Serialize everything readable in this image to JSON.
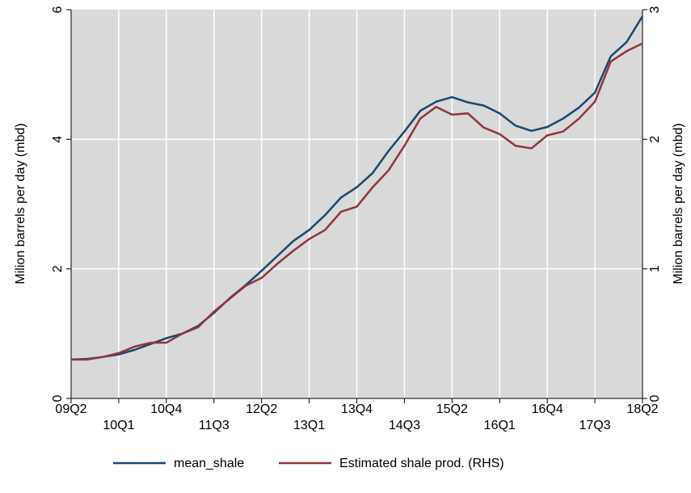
{
  "chart_data": {
    "type": "line",
    "categories": [
      "09Q2",
      null,
      null,
      "10Q1",
      null,
      null,
      "10Q4",
      null,
      null,
      "11Q3",
      null,
      null,
      "12Q2",
      null,
      null,
      "13Q1",
      null,
      null,
      "13Q4",
      null,
      null,
      "14Q3",
      null,
      null,
      "15Q2",
      null,
      null,
      "16Q1",
      null,
      null,
      "16Q4",
      null,
      null,
      "17Q3",
      null,
      null,
      "18Q2"
    ],
    "series": [
      {
        "name": "mean_shale",
        "color": "#1a476f",
        "axis": "y",
        "values": [
          0.6,
          0.61,
          0.64,
          0.68,
          0.75,
          0.84,
          0.93,
          1.0,
          1.12,
          1.32,
          1.55,
          1.75,
          1.97,
          2.2,
          2.43,
          2.6,
          2.83,
          3.1,
          3.26,
          3.48,
          3.82,
          4.12,
          4.44,
          4.58,
          4.65,
          4.57,
          4.52,
          4.4,
          4.21,
          4.13,
          4.19,
          4.32,
          4.49,
          4.72,
          5.28,
          5.5,
          5.9
        ]
      },
      {
        "name": "Estimated shale prod. (RHS)",
        "color": "#90353b",
        "axis": "y2",
        "values": [
          0.3,
          0.3,
          0.32,
          0.35,
          0.4,
          0.43,
          0.43,
          0.5,
          0.55,
          0.67,
          0.77,
          0.87,
          0.93,
          1.04,
          1.14,
          1.23,
          1.3,
          1.44,
          1.48,
          1.63,
          1.76,
          1.95,
          2.16,
          2.25,
          2.19,
          2.2,
          2.09,
          2.04,
          1.95,
          1.93,
          2.03,
          2.06,
          2.16,
          2.29,
          2.6,
          2.68,
          2.74
        ]
      }
    ],
    "ylabel": "Milion barrels per day (mbd)",
    "y2label": "Milion barrels per day (mbd)",
    "ylim": [
      0,
      6
    ],
    "yticks": [
      0,
      2,
      4,
      6
    ],
    "y2lim": [
      0,
      3
    ],
    "y2ticks": [
      0,
      1,
      2,
      3
    ],
    "grid": true,
    "legend": "bottom"
  }
}
